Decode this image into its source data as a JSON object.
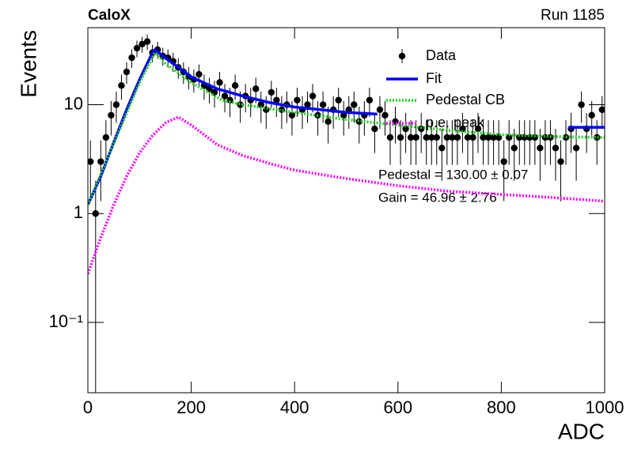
{
  "chart_data": {
    "type": "scatter",
    "title": "CaloX",
    "subtitle": "Run 1185",
    "x_label": "ADC",
    "y_label": "Events",
    "xlim": [
      0,
      1000
    ],
    "xticks": [
      0,
      200,
      400,
      600,
      800,
      1000
    ],
    "ylim": [
      0.0226,
      51
    ],
    "log_y": true,
    "yticks": [
      {
        "value": 0.1,
        "label": "10⁻¹"
      },
      1,
      10
    ],
    "annotations": [
      "Pedestal = 130.00 ± 0.07",
      "Gain = 46.96 ± 2.76"
    ],
    "series": [
      {
        "name": "Data",
        "type": "points",
        "color": "#000000",
        "x": [
          5,
          15,
          25,
          35,
          45,
          55,
          65,
          75,
          85,
          95,
          105,
          115,
          125,
          135,
          145,
          155,
          165,
          175,
          185,
          195,
          205,
          215,
          225,
          235,
          245,
          255,
          265,
          275,
          285,
          295,
          305,
          315,
          325,
          335,
          345,
          355,
          365,
          375,
          385,
          395,
          405,
          415,
          425,
          435,
          445,
          455,
          465,
          475,
          485,
          495,
          505,
          515,
          525,
          535,
          545,
          555,
          565,
          575,
          585,
          595,
          605,
          615,
          625,
          635,
          645,
          655,
          665,
          675,
          685,
          695,
          705,
          715,
          725,
          735,
          745,
          755,
          765,
          775,
          785,
          795,
          805,
          815,
          825,
          835,
          845,
          855,
          865,
          875,
          885,
          895,
          905,
          915,
          925,
          935,
          945,
          955,
          965,
          975,
          985,
          995
        ],
        "values": [
          3,
          1,
          3,
          5,
          8,
          10,
          15,
          20,
          27,
          33,
          36,
          38,
          30,
          32,
          28,
          27,
          25,
          22,
          20,
          18,
          17,
          19,
          15,
          14,
          13,
          16,
          12,
          11,
          15,
          10,
          12,
          11,
          14,
          10,
          9,
          13,
          11,
          9,
          10,
          8,
          11,
          9,
          10,
          12,
          8,
          10,
          7,
          9,
          11,
          8,
          9,
          10,
          7,
          8,
          11,
          6,
          9,
          8,
          5,
          7,
          5,
          6,
          5,
          5,
          6,
          5,
          5,
          5,
          4,
          5,
          5,
          5,
          6,
          5,
          5,
          6,
          5,
          5,
          5,
          5,
          3,
          5,
          4,
          5,
          5,
          5,
          5,
          4,
          5,
          5,
          4,
          3,
          5,
          6,
          4,
          10,
          6,
          8,
          5,
          9
        ],
        "errors": [
          1.7,
          1,
          1.7,
          2.2,
          2.8,
          3.2,
          3.9,
          4.5,
          5.2,
          5.7,
          6,
          6.2,
          5.5,
          5.7,
          5.3,
          5.2,
          5,
          4.7,
          4.5,
          4.2,
          4.1,
          4.4,
          3.9,
          3.7,
          3.6,
          4,
          3.5,
          3.3,
          3.9,
          3.2,
          3.5,
          3.3,
          3.7,
          3.2,
          3,
          3.6,
          3.3,
          3,
          3.2,
          2.8,
          3.3,
          3,
          3.2,
          3.5,
          2.8,
          3.2,
          2.6,
          3,
          3.3,
          2.8,
          3,
          3.2,
          2.6,
          2.8,
          3.3,
          2.4,
          3,
          2.8,
          2.2,
          2.6,
          2.2,
          2.4,
          2.2,
          2.2,
          2.4,
          2.2,
          2.2,
          2.2,
          2,
          2.2,
          2.2,
          2.2,
          2.4,
          2.2,
          2.2,
          2.4,
          2.2,
          2.2,
          2.2,
          2.2,
          1.7,
          2.2,
          2,
          2.2,
          2.2,
          2.2,
          2.2,
          2,
          2.2,
          2.2,
          2,
          1.7,
          2.2,
          2.4,
          2,
          3.2,
          2.4,
          2.8,
          2.2,
          3
        ]
      },
      {
        "name": "Fit",
        "type": "line",
        "color": "#0000ff",
        "dash": false,
        "x": [
          0,
          25,
          50,
          75,
          100,
          125,
          130,
          150,
          175,
          200,
          250,
          300,
          350,
          400,
          450,
          500,
          560,
          600,
          900,
          930,
          1000
        ],
        "values": [
          1.2,
          2.2,
          4.5,
          9,
          17,
          30,
          32,
          27,
          22,
          18,
          14,
          12,
          10.5,
          9.5,
          9,
          8.5,
          8.2,
          null,
          null,
          6.2,
          6.2
        ]
      },
      {
        "name": "Pedestal CB",
        "type": "line",
        "color": "#22cc22",
        "dash": true,
        "x": [
          0,
          50,
          100,
          130,
          150,
          200,
          260,
          300,
          400,
          500,
          600,
          700,
          800,
          900,
          1000
        ],
        "values": [
          1.2,
          4.4,
          16,
          30,
          24,
          16,
          11,
          10,
          8.5,
          7.3,
          6.5,
          5.8,
          5.3,
          5.1,
          5
        ]
      },
      {
        "name": "p.e. peak",
        "type": "line",
        "color": "#ff00ff",
        "dash": true,
        "x": [
          0,
          25,
          50,
          75,
          100,
          125,
          150,
          175,
          200,
          250,
          300,
          350,
          400,
          500,
          600,
          700,
          800,
          900,
          1000
        ],
        "values": [
          0.28,
          0.6,
          1.2,
          2.2,
          3.6,
          5.2,
          6.8,
          7.7,
          6.5,
          4.3,
          3.4,
          2.9,
          2.5,
          2.1,
          1.8,
          1.6,
          1.5,
          1.4,
          1.3
        ]
      }
    ]
  }
}
